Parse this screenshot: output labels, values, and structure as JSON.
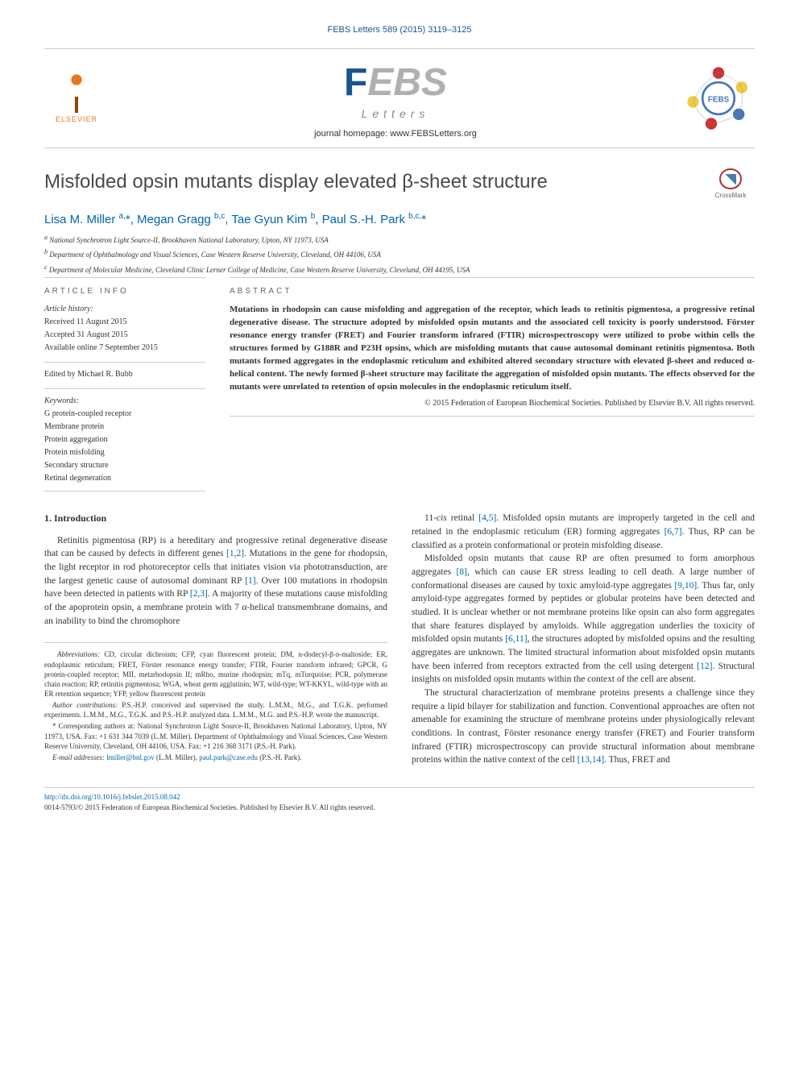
{
  "header": {
    "citation": "FEBS Letters 589 (2015) 3119–3125",
    "publisher": "ELSEVIER",
    "journal_name_f": "F",
    "journal_name_ebs": "EBS",
    "journal_name_letters": "Letters",
    "homepage_label": "journal homepage: ",
    "homepage_url": "www.FEBSLetters.org",
    "crossmark": "CrossMark"
  },
  "title": "Misfolded opsin mutants display elevated β-sheet structure",
  "authors_html": "Lisa M. Miller <sup>a,</sup>*, Megan Gragg <sup>b,c</sup>, Tae Gyun Kim <sup>b</sup>, Paul S.-H. Park <sup>b,c,</sup>*",
  "affiliations": [
    {
      "sup": "a",
      "text": "National Synchrotron Light Source-II, Brookhaven National Laboratory, Upton, NY 11973, USA"
    },
    {
      "sup": "b",
      "text": "Department of Ophthalmology and Visual Sciences, Case Western Reserve University, Cleveland, OH 44106, USA"
    },
    {
      "sup": "c",
      "text": "Department of Molecular Medicine, Cleveland Clinic Lerner College of Medicine, Case Western Reserve University, Cleveland, OH 44195, USA"
    }
  ],
  "article_info": {
    "heading": "ARTICLE INFO",
    "history_label": "Article history:",
    "received": "Received 11 August 2015",
    "accepted": "Accepted 31 August 2015",
    "available": "Available online 7 September 2015",
    "edited_by": "Edited by Michael R. Bubb",
    "keywords_label": "Keywords:",
    "keywords": [
      "G protein-coupled receptor",
      "Membrane protein",
      "Protein aggregation",
      "Protein misfolding",
      "Secondary structure",
      "Retinal degeneration"
    ]
  },
  "abstract": {
    "heading": "ABSTRACT",
    "text": "Mutations in rhodopsin can cause misfolding and aggregation of the receptor, which leads to retinitis pigmentosa, a progressive retinal degenerative disease. The structure adopted by misfolded opsin mutants and the associated cell toxicity is poorly understood. Förster resonance energy transfer (FRET) and Fourier transform infrared (FTIR) microspectroscopy were utilized to probe within cells the structures formed by G188R and P23H opsins, which are misfolding mutants that cause autosomal dominant retinitis pigmentosa. Both mutants formed aggregates in the endoplasmic reticulum and exhibited altered secondary structure with elevated β-sheet and reduced α-helical content. The newly formed β-sheet structure may facilitate the aggregation of misfolded opsin mutants. The effects observed for the mutants were unrelated to retention of opsin molecules in the endoplasmic reticulum itself.",
    "copyright": "© 2015 Federation of European Biochemical Societies. Published by Elsevier B.V. All rights reserved."
  },
  "body": {
    "section1_heading": "1. Introduction",
    "col1_p1": "Retinitis pigmentosa (RP) is a hereditary and progressive retinal degenerative disease that can be caused by defects in different genes [1,2]. Mutations in the gene for rhodopsin, the light receptor in rod photoreceptor cells that initiates vision via phototransduction, are the largest genetic cause of autosomal dominant RP [1]. Over 100 mutations in rhodopsin have been detected in patients with RP [2,3]. A majority of these mutations cause misfolding of the apoprotein opsin, a membrane protein with 7 α-helical transmembrane domains, and an inability to bind the chromophore",
    "col2_p1": "11-cis retinal [4,5]. Misfolded opsin mutants are improperly targeted in the cell and retained in the endoplasmic reticulum (ER) forming aggregates [6,7]. Thus, RP can be classified as a protein conformational or protein misfolding disease.",
    "col2_p2": "Misfolded opsin mutants that cause RP are often presumed to form amorphous aggregates [8], which can cause ER stress leading to cell death. A large number of conformational diseases are caused by toxic amyloid-type aggregates [9,10]. Thus far, only amyloid-type aggregates formed by peptides or globular proteins have been detected and studied. It is unclear whether or not membrane proteins like opsin can also form aggregates that share features displayed by amyloids. While aggregation underlies the toxicity of misfolded opsin mutants [6,11], the structures adopted by misfolded opsins and the resulting aggregates are unknown. The limited structural information about misfolded opsin mutants have been inferred from receptors extracted from the cell using detergent [12]. Structural insights on misfolded opsin mutants within the context of the cell are absent.",
    "col2_p3": "The structural characterization of membrane proteins presents a challenge since they require a lipid bilayer for stabilization and function. Conventional approaches are often not amenable for examining the structure of membrane proteins under physiologically relevant conditions. In contrast, Förster resonance energy transfer (FRET) and Fourier transform infrared (FTIR) microspectroscopy can provide structural information about membrane proteins within the native context of the cell [13,14]. Thus, FRET and",
    "refs_col1": {
      "r1": "[1,2]",
      "r2": "[1]",
      "r3": "[2,3]"
    },
    "refs_col2": {
      "r1": "[4,5]",
      "r2": "[6,7]",
      "r3": "[8]",
      "r4": "[9,10]",
      "r5": "[6,11]",
      "r6": "[12]",
      "r7": "[13,14]"
    }
  },
  "footnotes": {
    "abbrev_label": "Abbreviations:",
    "abbrev_text": " CD, circular dichroism; CFP, cyan fluorescent protein; DM, n-dodecyl-β-ᴅ-maltoside; ER, endoplasmic reticulum; FRET, Förster resonance energy transfer; FTIR, Fourier transform infrared; GPCR, G protein-coupled receptor; MII, metarhodopsin II; mRho, murine rhodopsin; mTq, mTurquoise; PCR, polymerase chain reaction; RP, retinitis pigmentosa; WGA, wheat germ agglutinin; WT, wild-type; WT-KKYL, wild-type with an ER retention sequence; YFP, yellow fluorescent protein",
    "author_contrib_label": "Author contributions:",
    "author_contrib_text": " P.S.-H.P. conceived and supervised the study. L.M.M., M.G., and T.G.K. performed experiments. L.M.M., M.G., T.G.K. and P.S.-H.P. analyzed data. L.M.M., M.G. and P.S.-H.P. wrote the manuscript.",
    "corresponding_label": "* Corresponding authors at: ",
    "corresponding_text": "National Synchrotron Light Source-II, Brookhaven National Laboratory, Upton, NY 11973, USA. Fax: +1 631 344 7039 (L.M. Miller). Department of Ophthalmology and Visual Sciences, Case Western Reserve University, Cleveland, OH 44106, USA. Fax: +1 216 368 3171 (P.S.-H. Park).",
    "email_label": "E-mail addresses:",
    "email1": "lmiller@bnl.gov",
    "email1_name": " (L.M. Miller), ",
    "email2": "paul.park@case.edu",
    "email2_name": " (P.S.-H. Park)."
  },
  "footer": {
    "doi": "http://dx.doi.org/10.1016/j.febslet.2015.08.042",
    "issn_line": "0014-5793/© 2015 Federation of European Biochemical Societies. Published by Elsevier B.V. All rights reserved."
  },
  "colors": {
    "link": "#0066aa",
    "elsevier_orange": "#E87722",
    "febs_blue": "#1a5490",
    "text": "#333333",
    "border": "#cccccc",
    "badge_red": "#cc3333",
    "badge_yellow": "#eecc44",
    "badge_blue": "#4477bb"
  }
}
